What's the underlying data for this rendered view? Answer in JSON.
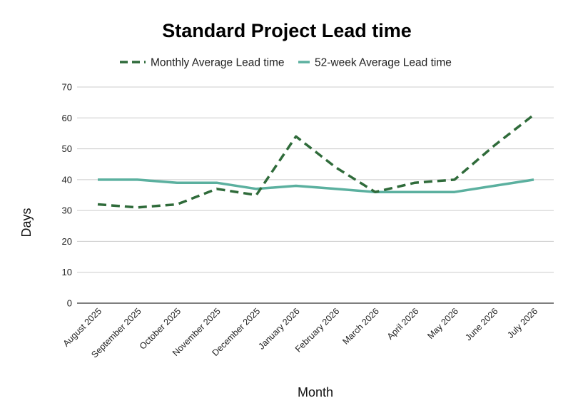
{
  "chart_data": {
    "type": "line",
    "title": "Standard Project Lead time",
    "xlabel": "Month",
    "ylabel": "Days",
    "ylim": [
      0,
      70
    ],
    "yticks": [
      0,
      10,
      20,
      30,
      40,
      50,
      60,
      70
    ],
    "grid": true,
    "legend_position": "top",
    "categories": [
      "August 2025",
      "September 2025",
      "October 2025",
      "November 2025",
      "December 2025",
      "January 2026",
      "February 2026",
      "March 2026",
      "April 2026",
      "May 2026",
      "June 2026",
      "July 2026"
    ],
    "series": [
      {
        "name": "Monthly Average Lead time",
        "color": "#2f6b3a",
        "style": "dashed",
        "values": [
          32,
          31,
          32,
          37,
          35,
          54,
          44,
          36,
          39,
          40,
          51,
          61
        ]
      },
      {
        "name": "52-week Average Lead time",
        "color": "#5bb09f",
        "style": "solid",
        "values": [
          40,
          40,
          39,
          39,
          37,
          38,
          37,
          36,
          36,
          36,
          38,
          40
        ]
      }
    ]
  }
}
